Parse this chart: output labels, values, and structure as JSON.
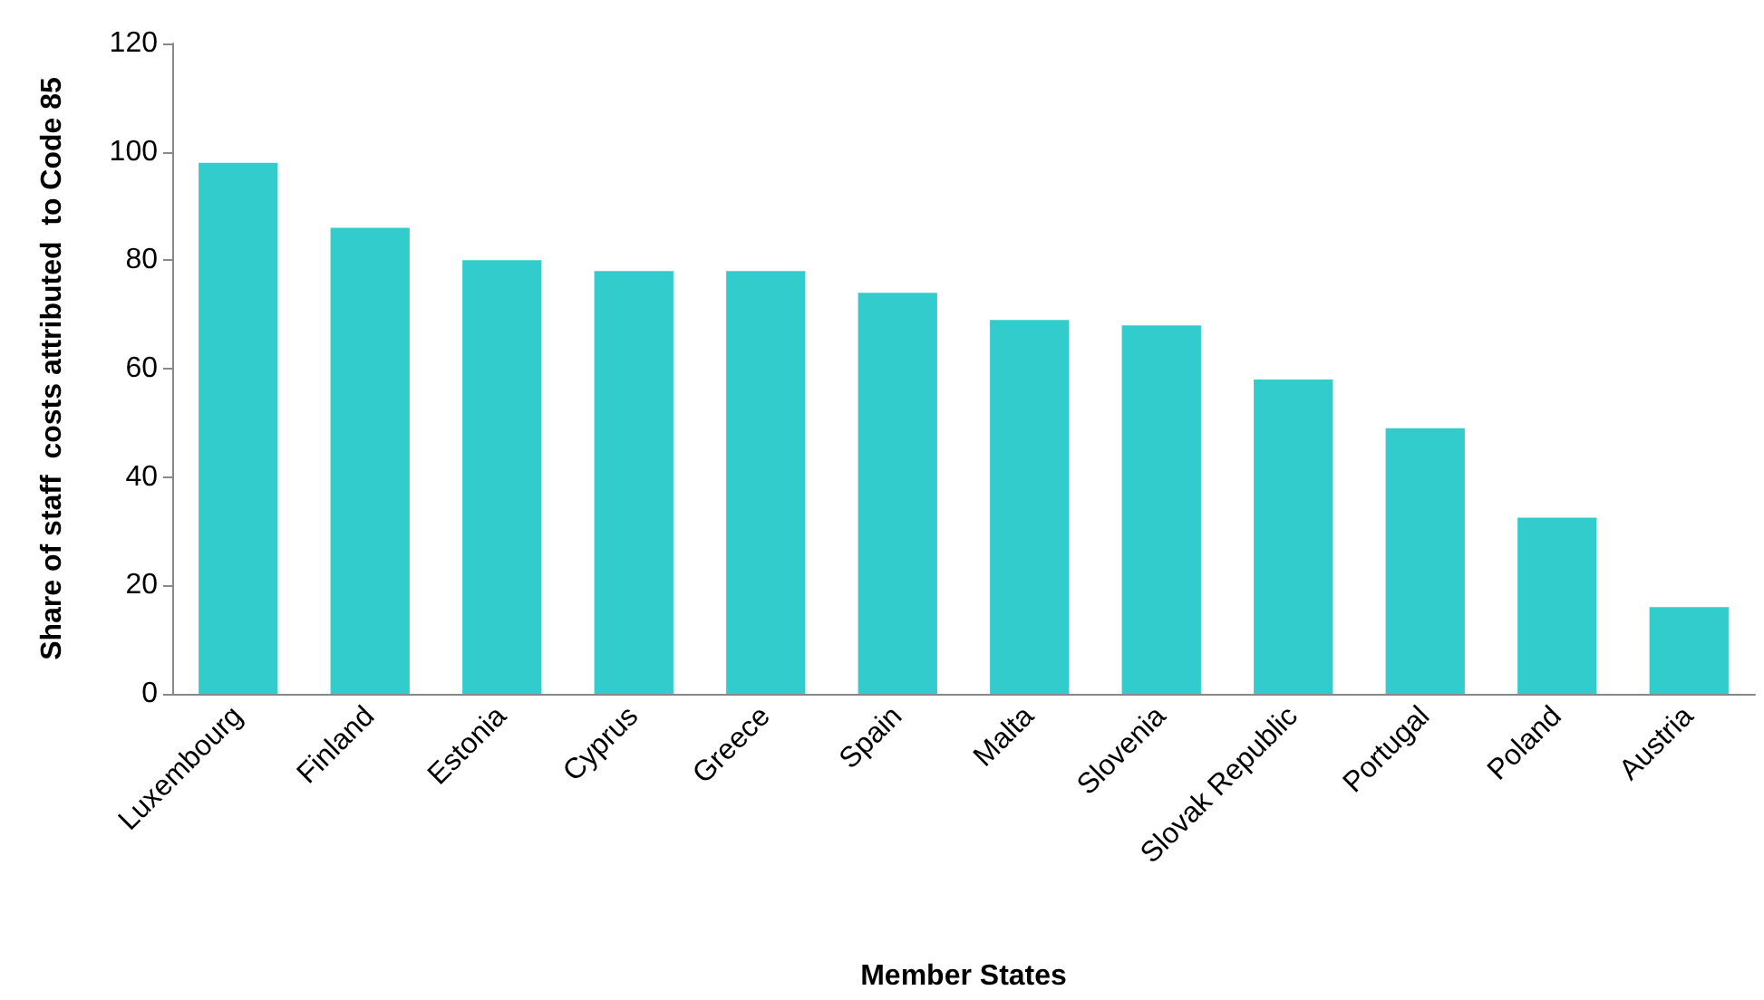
{
  "chart_data": {
    "type": "bar",
    "xlabel": "Member States",
    "ylabel": "Share of staff  costs attributed  to Code 85",
    "categories": [
      "Luxembourg",
      "Finland",
      "Estonia",
      "Cyprus",
      "Greece",
      "Spain",
      "Malta",
      "Slovenia",
      "Slovak Republic",
      "Portugal",
      "Poland",
      "Austria"
    ],
    "values": [
      98,
      86,
      80,
      78,
      78,
      74,
      69,
      68,
      58,
      49,
      32.5,
      16
    ],
    "color": "#33cccc",
    "ylim": [
      0,
      120
    ],
    "yticks": [
      0,
      20,
      40,
      60,
      80,
      100,
      120
    ],
    "grid": false
  }
}
